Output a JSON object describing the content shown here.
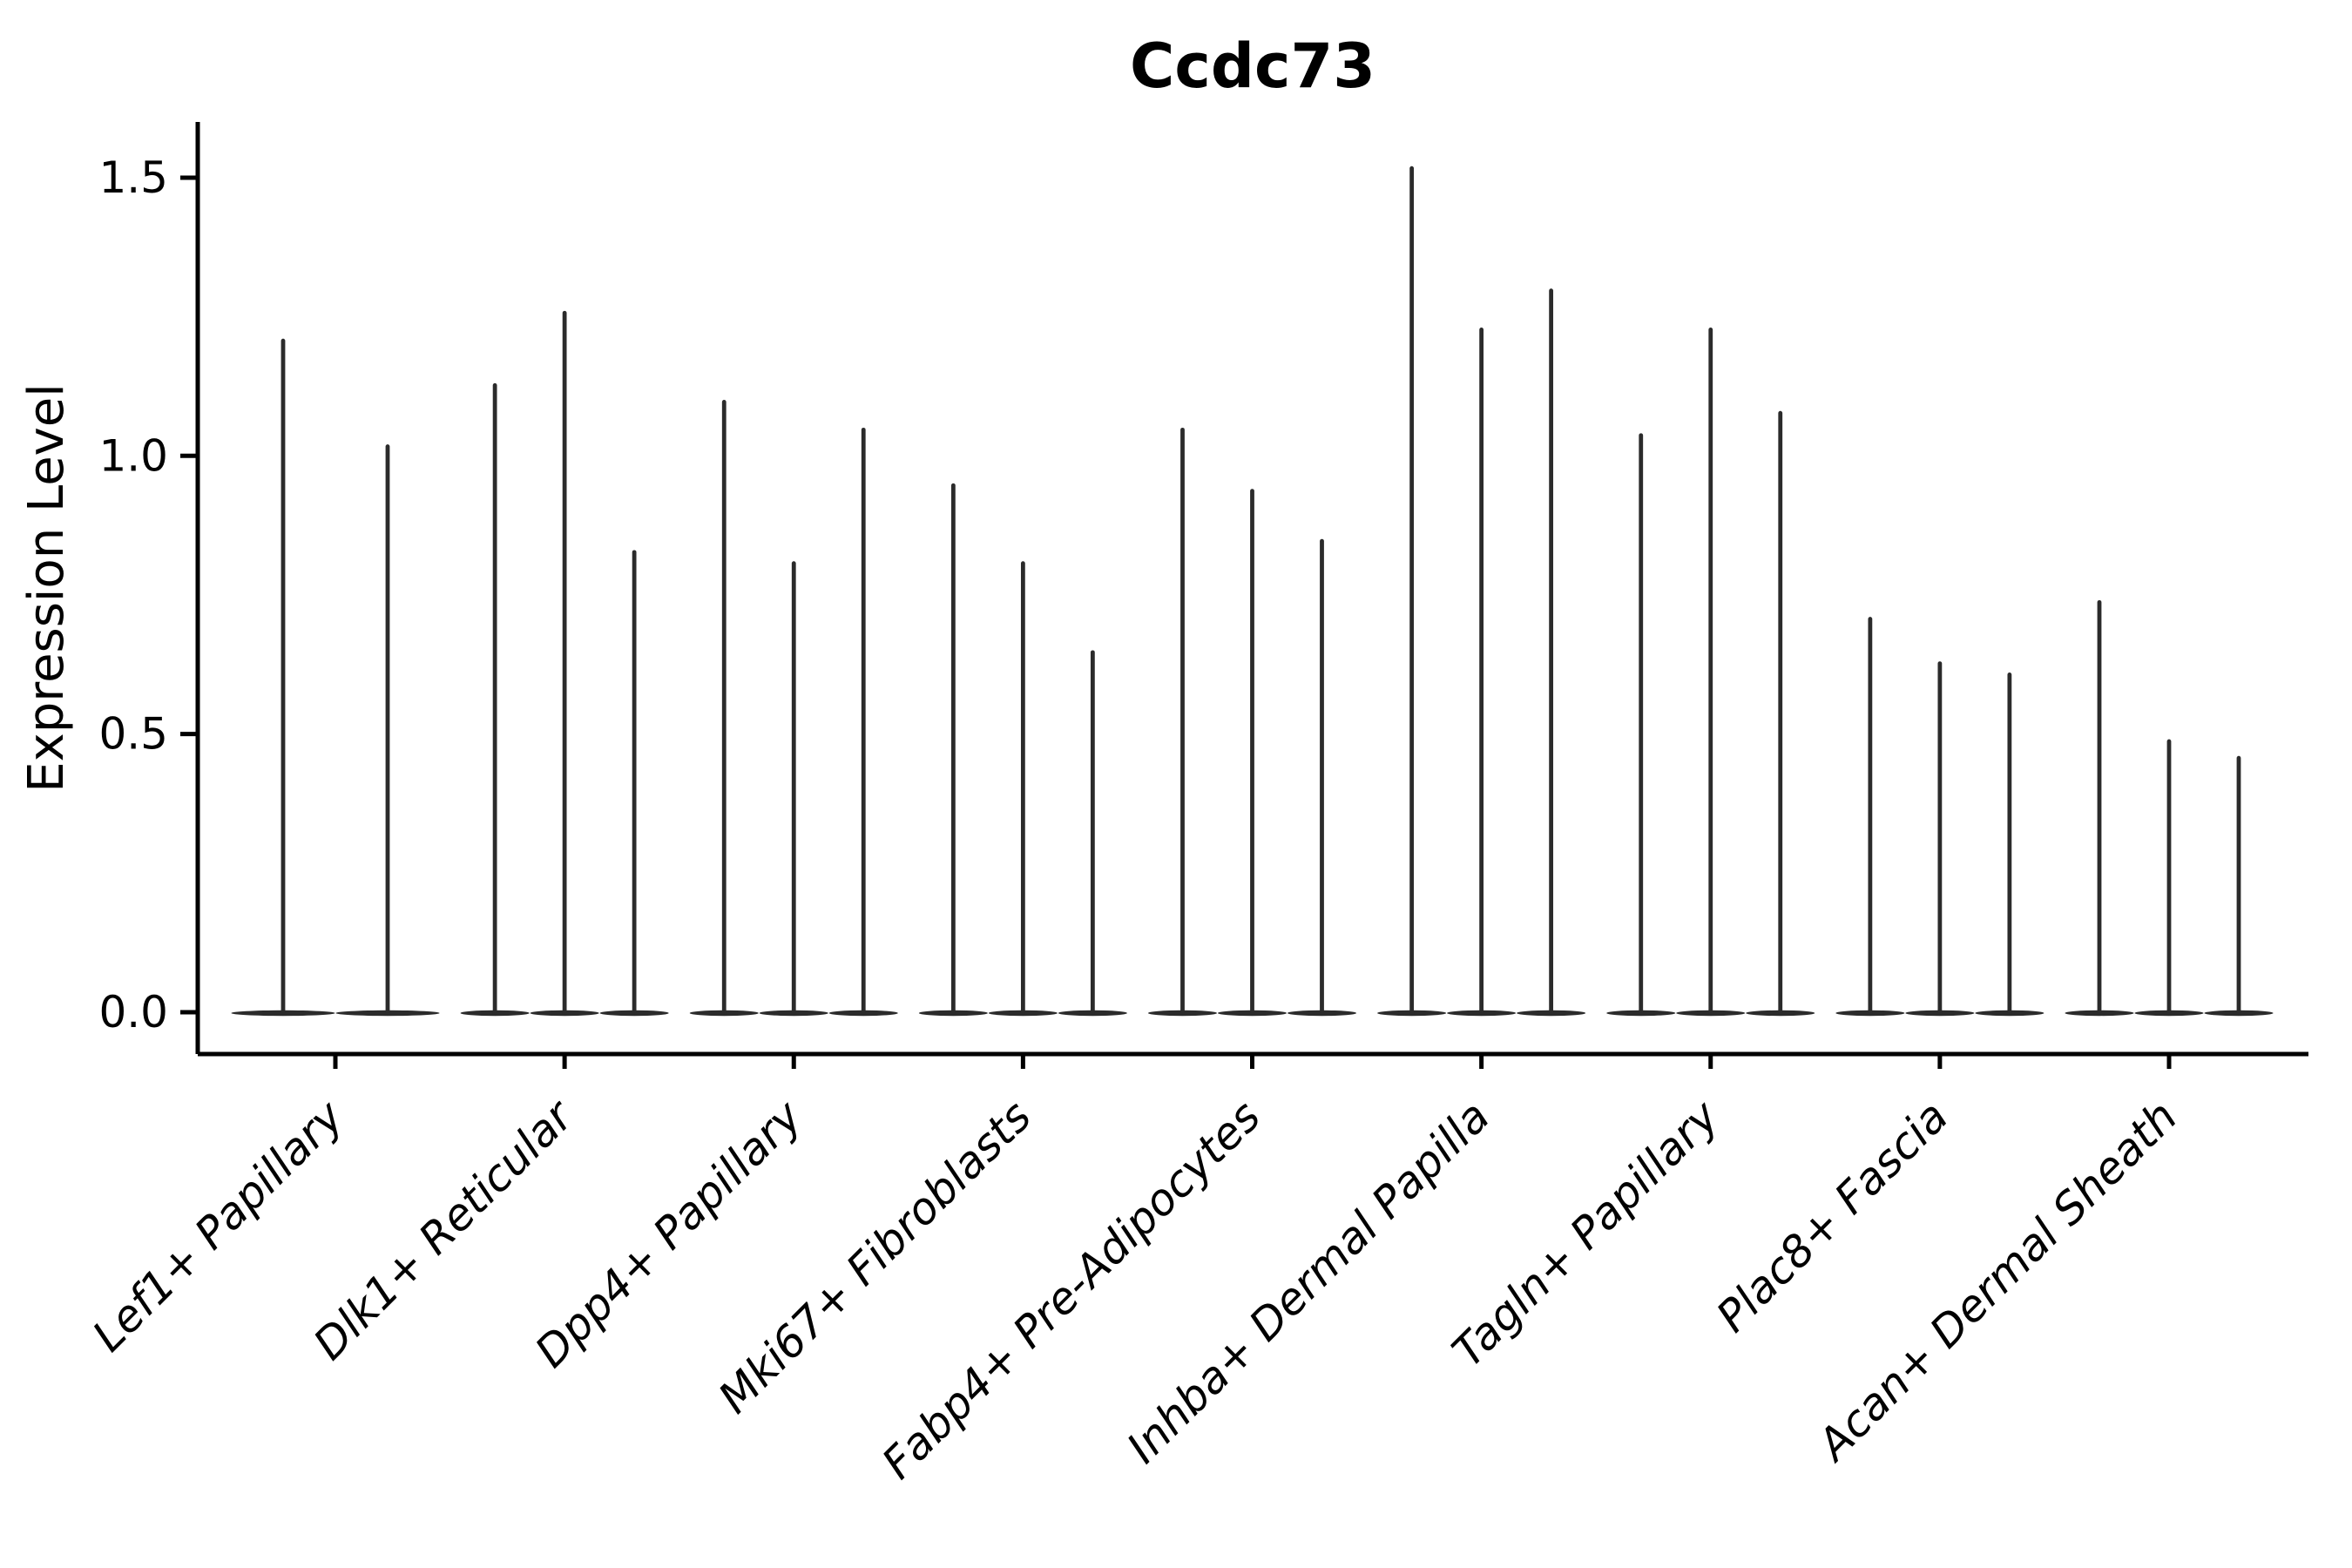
{
  "chart_data": {
    "type": "violin",
    "title": "Ccdc73",
    "ylabel": "Expression Level",
    "xlabel": "",
    "yticks": [
      0.0,
      0.5,
      1.0,
      1.5
    ],
    "ytick_labels": [
      "0.0",
      "0.5",
      "1.0",
      "1.5"
    ],
    "ylim": [
      0,
      1.6
    ],
    "grid": false,
    "legend": "none",
    "note": "Single-gene violin plot; each category contains one very thin violin per sample with density mass at 0, so each violin renders as a flat base at 0 plus a vertical spike reaching its maximum expression value.",
    "style": {
      "violin_color": "#2b2b2b",
      "axis_color": "#000000",
      "background": "#ffffff"
    },
    "categories": [
      "Lef1+ Papillary",
      "Dlk1+ Reticular",
      "Dpp4+ Papillary",
      "Mki67+ Fibroblasts",
      "Fabp4+ Pre-Adipocytes",
      "Inhba+ Dermal Papilla",
      "Tagln+ Papillary",
      "Plac8+ Fascia",
      "Acan+ Dermal Sheath"
    ],
    "groups": [
      {
        "category": "Lef1+ Papillary",
        "spike_max_values": [
          1.21,
          1.02
        ]
      },
      {
        "category": "Dlk1+ Reticular",
        "spike_max_values": [
          1.13,
          1.26,
          0.83
        ]
      },
      {
        "category": "Dpp4+ Papillary",
        "spike_max_values": [
          1.1,
          0.81,
          1.05
        ]
      },
      {
        "category": "Mki67+ Fibroblasts",
        "spike_max_values": [
          0.95,
          0.81,
          0.65
        ]
      },
      {
        "category": "Fabp4+ Pre-Adipocytes",
        "spike_max_values": [
          1.05,
          0.94,
          0.85
        ]
      },
      {
        "category": "Inhba+ Dermal Papilla",
        "spike_max_values": [
          1.52,
          1.23,
          1.3
        ]
      },
      {
        "category": "Tagln+ Papillary",
        "spike_max_values": [
          1.04,
          1.23,
          1.08
        ]
      },
      {
        "category": "Plac8+ Fascia",
        "spike_max_values": [
          0.71,
          0.63,
          0.61
        ]
      },
      {
        "category": "Acan+ Dermal Sheath",
        "spike_max_values": [
          0.74,
          0.49,
          0.46
        ]
      }
    ]
  }
}
